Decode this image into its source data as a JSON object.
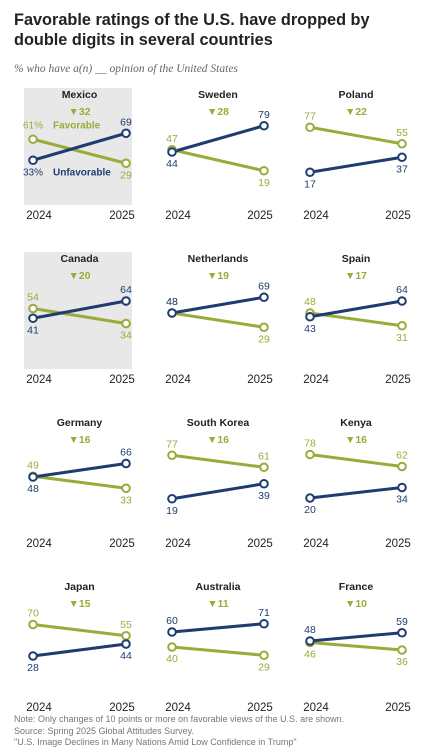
{
  "title": "Favorable ratings of the U.S. have dropped by double digits in several countries",
  "subtitle": "% who have a(n) __ opinion of the United States",
  "colors": {
    "favorable": "#9aab3a",
    "unfavorable": "#1f3c70",
    "highlight_bg": "#e8e8e8"
  },
  "chart_data": {
    "type": "line",
    "x": [
      "2024",
      "2025"
    ],
    "series_labels": {
      "favorable": "Favorable",
      "unfavorable": "Unfavorable"
    },
    "panels": [
      {
        "country": "Mexico",
        "drop": "▼32",
        "favorable": [
          61,
          29
        ],
        "unfavorable": [
          33,
          69
        ],
        "favorable_label_2024": "61%",
        "unfavorable_label_2024": "33%",
        "highlighted": true
      },
      {
        "country": "Sweden",
        "drop": "▼28",
        "favorable": [
          47,
          19
        ],
        "unfavorable": [
          44,
          79
        ]
      },
      {
        "country": "Poland",
        "drop": "▼22",
        "favorable": [
          77,
          55
        ],
        "unfavorable": [
          17,
          37
        ]
      },
      {
        "country": "Canada",
        "drop": "▼20",
        "favorable": [
          54,
          34
        ],
        "unfavorable": [
          41,
          64
        ],
        "highlighted": true
      },
      {
        "country": "Netherlands",
        "drop": "▼19",
        "favorable": [
          48,
          29
        ],
        "unfavorable": [
          48,
          69
        ]
      },
      {
        "country": "Spain",
        "drop": "▼17",
        "favorable": [
          48,
          31
        ],
        "unfavorable": [
          43,
          64
        ]
      },
      {
        "country": "Germany",
        "drop": "▼16",
        "favorable": [
          49,
          33
        ],
        "unfavorable": [
          48,
          66
        ]
      },
      {
        "country": "South Korea",
        "drop": "▼16",
        "favorable": [
          77,
          61
        ],
        "unfavorable": [
          19,
          39
        ]
      },
      {
        "country": "Kenya",
        "drop": "▼16",
        "favorable": [
          78,
          62
        ],
        "unfavorable": [
          20,
          34
        ]
      },
      {
        "country": "Japan",
        "drop": "▼15",
        "favorable": [
          70,
          55
        ],
        "unfavorable": [
          28,
          44
        ]
      },
      {
        "country": "Australia",
        "drop": "▼11",
        "favorable": [
          40,
          29
        ],
        "unfavorable": [
          60,
          71
        ]
      },
      {
        "country": "France",
        "drop": "▼10",
        "favorable": [
          46,
          36
        ],
        "unfavorable": [
          48,
          59
        ]
      }
    ]
  },
  "notes": {
    "note": "Note: Only changes of 10 points or more on favorable views of the U.S. are shown.",
    "source": "Source: Spring 2025 Global Attitudes Survey.",
    "report": "\"U.S. Image Declines in Many Nations Amid Low Confidence in Trump\""
  }
}
